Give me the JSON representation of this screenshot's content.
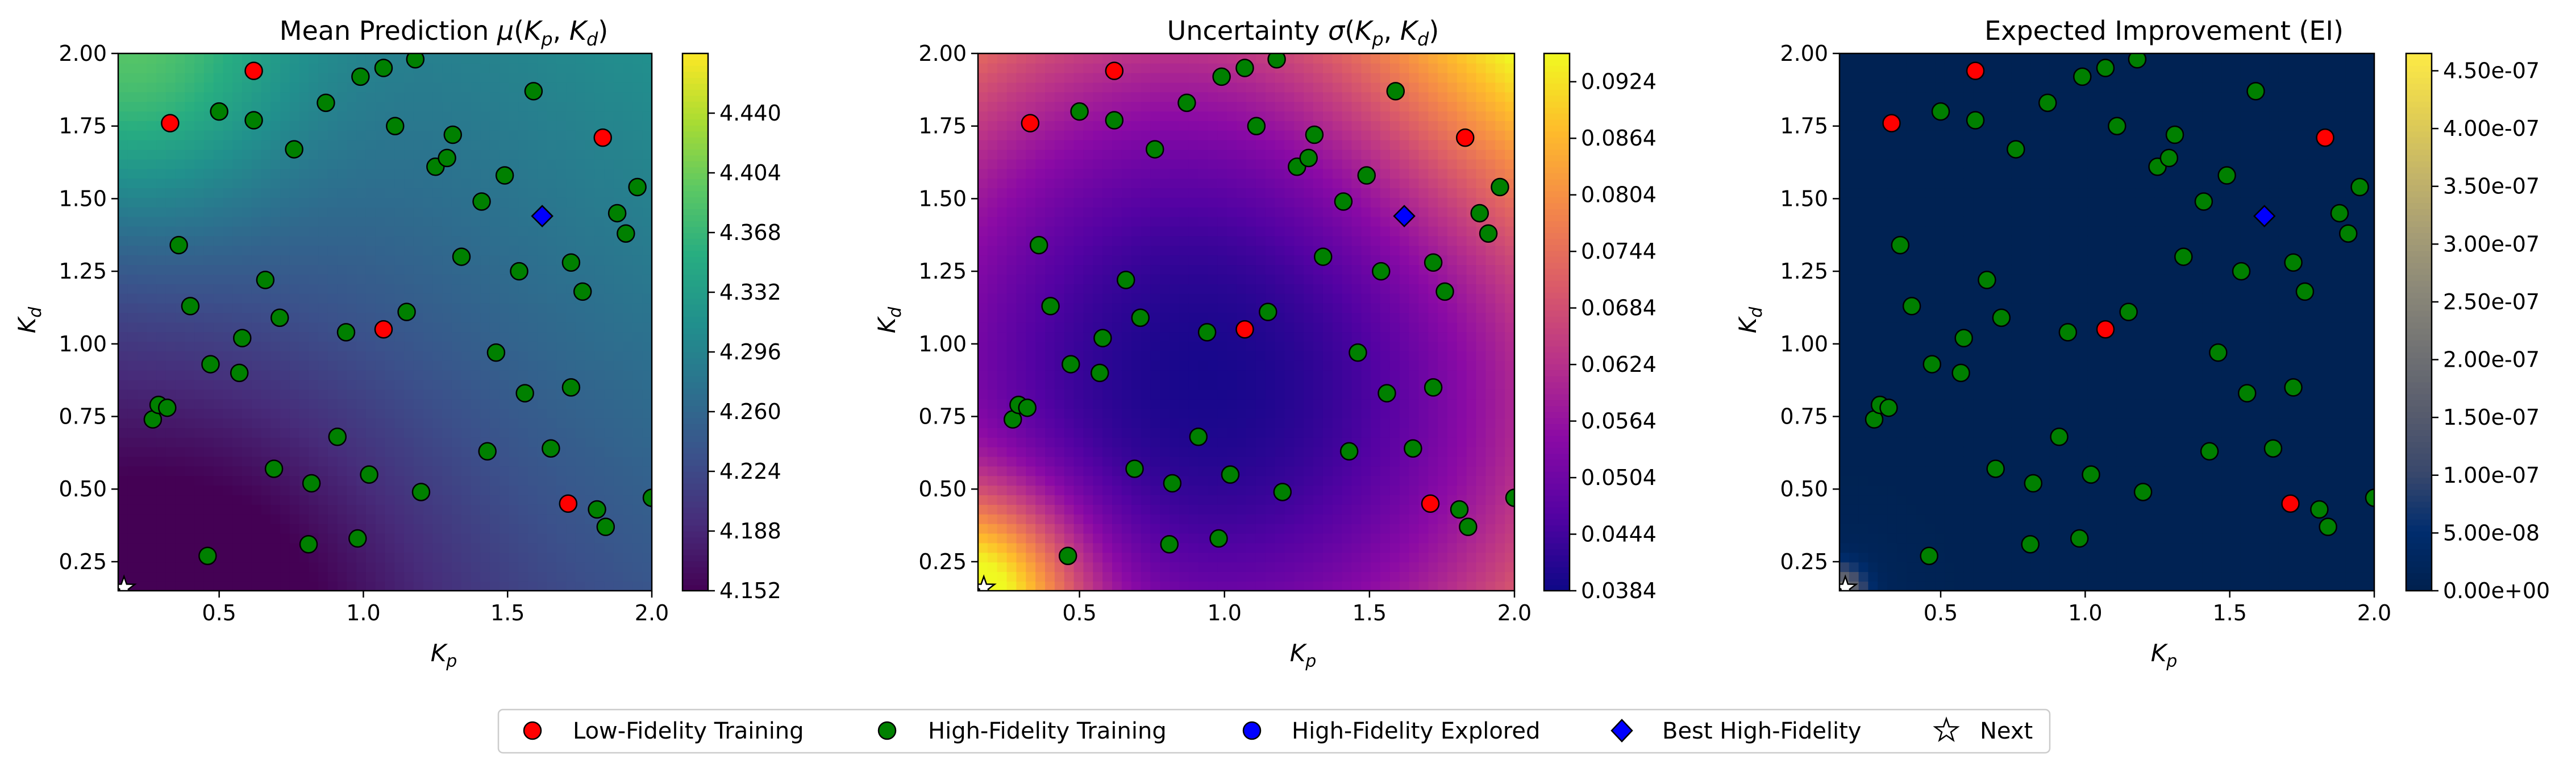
{
  "chart_data": [
    {
      "type": "heatmap",
      "title": "Mean Prediction μ(Kp, Kd)",
      "title_parts": {
        "lead": "Mean Prediction ",
        "var": "μ",
        "open": "(",
        "v1": "K",
        "s1": "p",
        "comma": ", ",
        "v2": "K",
        "s2": "d",
        "close": ")"
      },
      "xlabel": {
        "base": "K",
        "sub": "p"
      },
      "ylabel": {
        "base": "K",
        "sub": "d"
      },
      "xlim": [
        0.15,
        2.0
      ],
      "ylim": [
        0.15,
        2.0
      ],
      "xticks": [
        "0.5",
        "1.0",
        "1.5",
        "2.0"
      ],
      "yticks": [
        "0.25",
        "0.50",
        "0.75",
        "1.00",
        "1.25",
        "1.50",
        "1.75",
        "2.00"
      ],
      "colormap": "viridis",
      "colorbar_range": [
        4.152,
        4.476
      ],
      "colorbar_ticks": [
        "4.152",
        "4.188",
        "4.224",
        "4.260",
        "4.296",
        "4.332",
        "4.368",
        "4.404",
        "4.440"
      ]
    },
    {
      "type": "heatmap",
      "title": "Uncertainty σ(Kp, Kd)",
      "title_parts": {
        "lead": "Uncertainty ",
        "var": "σ",
        "open": "(",
        "v1": "K",
        "s1": "p",
        "comma": ", ",
        "v2": "K",
        "s2": "d",
        "close": ")"
      },
      "xlabel": {
        "base": "K",
        "sub": "p"
      },
      "ylabel": {
        "base": "K",
        "sub": "d"
      },
      "xlim": [
        0.15,
        2.0
      ],
      "ylim": [
        0.15,
        2.0
      ],
      "xticks": [
        "0.5",
        "1.0",
        "1.5",
        "2.0"
      ],
      "yticks": [
        "0.25",
        "0.50",
        "0.75",
        "1.00",
        "1.25",
        "1.50",
        "1.75",
        "2.00"
      ],
      "colormap": "plasma",
      "colorbar_range": [
        0.0384,
        0.0954
      ],
      "colorbar_ticks": [
        "0.0384",
        "0.0444",
        "0.0504",
        "0.0564",
        "0.0624",
        "0.0684",
        "0.0744",
        "0.0804",
        "0.0864",
        "0.0924"
      ]
    },
    {
      "type": "heatmap",
      "title": "Expected Improvement (EI)",
      "xlabel": {
        "base": "K",
        "sub": "p"
      },
      "ylabel": {
        "base": "K",
        "sub": "d"
      },
      "xlim": [
        0.15,
        2.0
      ],
      "ylim": [
        0.15,
        2.0
      ],
      "xticks": [
        "0.5",
        "1.0",
        "1.5",
        "2.0"
      ],
      "yticks": [
        "0.25",
        "0.50",
        "0.75",
        "1.00",
        "1.25",
        "1.50",
        "1.75",
        "2.00"
      ],
      "colormap": "cividis",
      "colorbar_range": [
        0,
        4.65e-07
      ],
      "colorbar_ticks": [
        "0.00e+00",
        "5.00e-08",
        "1.00e-07",
        "1.50e-07",
        "2.00e-07",
        "2.50e-07",
        "3.00e-07",
        "3.50e-07",
        "4.00e-07",
        "4.50e-07"
      ]
    }
  ],
  "points": {
    "low_fidelity": [
      [
        0.62,
        1.94
      ],
      [
        0.33,
        1.76
      ],
      [
        1.83,
        1.71
      ],
      [
        1.07,
        1.05
      ],
      [
        1.71,
        0.45
      ]
    ],
    "high_fidelity": [
      [
        0.5,
        1.8
      ],
      [
        0.62,
        1.77
      ],
      [
        0.76,
        1.67
      ],
      [
        0.87,
        1.83
      ],
      [
        0.99,
        1.92
      ],
      [
        1.07,
        1.95
      ],
      [
        1.18,
        1.98
      ],
      [
        1.11,
        1.75
      ],
      [
        1.25,
        1.61
      ],
      [
        1.29,
        1.64
      ],
      [
        1.31,
        1.72
      ],
      [
        1.41,
        1.49
      ],
      [
        1.49,
        1.58
      ],
      [
        1.59,
        1.87
      ],
      [
        1.88,
        1.45
      ],
      [
        1.91,
        1.38
      ],
      [
        1.95,
        1.54
      ],
      [
        0.36,
        1.34
      ],
      [
        0.4,
        1.13
      ],
      [
        0.66,
        1.22
      ],
      [
        0.71,
        1.09
      ],
      [
        0.94,
        1.04
      ],
      [
        1.15,
        1.11
      ],
      [
        1.34,
        1.3
      ],
      [
        1.54,
        1.25
      ],
      [
        1.72,
        1.28
      ],
      [
        1.76,
        1.18
      ],
      [
        0.58,
        1.02
      ],
      [
        0.57,
        0.9
      ],
      [
        0.47,
        0.93
      ],
      [
        1.46,
        0.97
      ],
      [
        1.56,
        0.83
      ],
      [
        1.72,
        0.85
      ],
      [
        0.27,
        0.74
      ],
      [
        0.29,
        0.79
      ],
      [
        0.32,
        0.78
      ],
      [
        0.91,
        0.68
      ],
      [
        1.43,
        0.63
      ],
      [
        1.65,
        0.64
      ],
      [
        0.69,
        0.57
      ],
      [
        0.82,
        0.52
      ],
      [
        1.02,
        0.55
      ],
      [
        1.2,
        0.49
      ],
      [
        1.81,
        0.43
      ],
      [
        1.84,
        0.37
      ],
      [
        2.0,
        0.47
      ],
      [
        0.81,
        0.31
      ],
      [
        0.98,
        0.33
      ],
      [
        0.46,
        0.27
      ]
    ],
    "best_high_fidelity": [
      [
        1.62,
        1.44
      ]
    ],
    "next": [
      [
        0.17,
        0.16
      ]
    ]
  },
  "legend": {
    "items": [
      {
        "label": "Low-Fidelity Training",
        "color": "#ff0000",
        "marker": "circle"
      },
      {
        "label": "High-Fidelity Training",
        "color": "#008000",
        "marker": "circle"
      },
      {
        "label": "High-Fidelity Explored",
        "color": "#0000ff",
        "marker": "circle"
      },
      {
        "label": "Best High-Fidelity",
        "color": "#0000ff",
        "marker": "diamond"
      },
      {
        "label": "Next",
        "color": "#ffffff",
        "marker": "star"
      }
    ]
  }
}
